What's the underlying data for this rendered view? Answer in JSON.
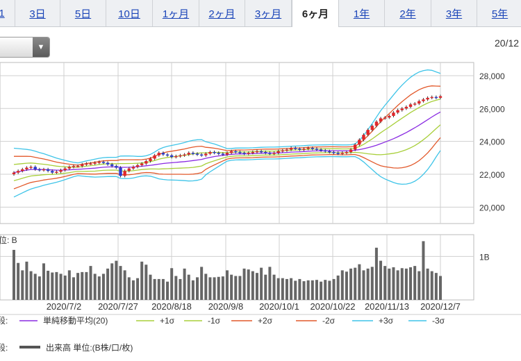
{
  "tabs": [
    {
      "label": "1",
      "active": false
    },
    {
      "label": "3日",
      "active": false
    },
    {
      "label": "5日",
      "active": false
    },
    {
      "label": "10日",
      "active": false
    },
    {
      "label": "1ヶ月",
      "active": false
    },
    {
      "label": "2ヶ月",
      "active": false
    },
    {
      "label": "3ヶ月",
      "active": false
    },
    {
      "label": "6ヶ月",
      "active": true
    },
    {
      "label": "1年",
      "active": false
    },
    {
      "label": "2年",
      "active": false
    },
    {
      "label": "3年",
      "active": false
    },
    {
      "label": "5年",
      "active": false
    }
  ],
  "dropdown": {
    "value": "",
    "icon": "triangle-down-icon"
  },
  "date_label": "20/12",
  "legend": {
    "row1_prefix": "段:",
    "row2_prefix": "段:",
    "volume_label": "出来高 単位:(B株/口/枚)"
  },
  "colors": {
    "up": "#e0262a",
    "down": "#2a3bd0",
    "sma": "#8a2be2",
    "sigma1": "#a8cf3a",
    "sigma2": "#e2582a",
    "sigma3": "#3ec4e8",
    "volume": "#666666",
    "grid": "#cfcfcf"
  },
  "chart_data": [
    {
      "type": "candlestick",
      "title": "",
      "ylim": [
        19000,
        28800
      ],
      "yticks": [
        20000,
        22000,
        24000,
        26000,
        28000
      ],
      "ytick_labels": [
        "20,000",
        "22,000",
        "24,000",
        "26,000",
        "28,000"
      ],
      "grid": true,
      "x_labels": [
        "2020/7/2",
        "2020/7/27",
        "2020/8/18",
        "2020/9/8",
        "2020/10/1",
        "2020/10/22",
        "2020/11/13",
        "2020/12/7"
      ],
      "close": [
        22100,
        22200,
        22300,
        22400,
        22450,
        22300,
        22250,
        22300,
        22200,
        22100,
        22150,
        22250,
        22350,
        22450,
        22500,
        22500,
        22600,
        22650,
        22650,
        22700,
        22750,
        22700,
        22600,
        22500,
        22400,
        21900,
        22200,
        22350,
        22450,
        22550,
        22650,
        22800,
        22950,
        23150,
        23300,
        23200,
        23150,
        23050,
        23100,
        23150,
        23200,
        23300,
        23250,
        23200,
        23150,
        23250,
        23350,
        23300,
        23250,
        23200,
        23300,
        23400,
        23350,
        23300,
        23250,
        23300,
        23350,
        23400,
        23350,
        23300,
        23250,
        23300,
        23400,
        23450,
        23500,
        23600,
        23550,
        23500,
        23550,
        23600,
        23550,
        23500,
        23450,
        23400,
        23350,
        23300,
        23250,
        23300,
        23350,
        23500,
        23800,
        24100,
        24400,
        24700,
        24950,
        25200,
        25400,
        25450,
        25550,
        25750,
        25900,
        26000,
        26100,
        26250,
        26300,
        26450,
        26550,
        26650,
        26700,
        26650,
        26750
      ],
      "series_sma20": [
        22400,
        22420,
        22430,
        22450,
        22460,
        22470,
        22480,
        22490,
        22500,
        22520,
        22550,
        22580,
        22620,
        22680,
        22740,
        22800,
        22860,
        22900,
        22950,
        23000,
        23050,
        23080,
        23100,
        23120,
        23140,
        23160,
        23180,
        23200,
        23220,
        23240,
        23260,
        23270,
        23280,
        23290,
        23300,
        23310,
        23320,
        23330,
        23340,
        23350,
        23360,
        23370,
        23380,
        23390,
        23400,
        23410,
        23420,
        23430,
        23440,
        23460,
        23480,
        23500,
        23550,
        23620,
        23720,
        23850,
        24000,
        24200,
        24450,
        24700,
        25000,
        25300,
        25550,
        25800,
        26000
      ],
      "series_sma20_x_start_index": 36,
      "bands_sigma": [
        1,
        2,
        3
      ]
    },
    {
      "type": "bar",
      "title": "",
      "ylim": [
        0,
        1.5
      ],
      "ytick_labels": [
        "1B"
      ],
      "yticks": [
        1
      ],
      "values": [
        1.15,
        0.85,
        0.68,
        0.88,
        0.66,
        0.6,
        0.54,
        0.84,
        0.67,
        0.63,
        0.64,
        0.6,
        0.56,
        0.68,
        0.52,
        0.62,
        0.64,
        0.64,
        0.78,
        0.6,
        0.54,
        0.6,
        0.72,
        0.84,
        0.9,
        0.78,
        0.68,
        0.52,
        0.45,
        0.5,
        0.88,
        0.81,
        0.58,
        0.48,
        0.48,
        0.48,
        0.42,
        0.73,
        0.55,
        0.48,
        0.72,
        0.58,
        0.45,
        0.52,
        0.76,
        0.6,
        0.52,
        0.52,
        0.53,
        0.54,
        0.68,
        0.58,
        0.55,
        0.55,
        0.72,
        0.7,
        0.66,
        0.62,
        0.74,
        0.58,
        0.76,
        0.58,
        0.5,
        0.5,
        0.48,
        0.5,
        0.44,
        0.48,
        0.43,
        0.45,
        0.45,
        0.46,
        0.42,
        0.46,
        0.44,
        0.48,
        0.56,
        0.68,
        0.65,
        0.72,
        0.74,
        0.82,
        0.68,
        0.72,
        0.76,
        1.2,
        0.9,
        0.78,
        0.72,
        0.75,
        0.68,
        0.73,
        0.72,
        0.75,
        0.78,
        0.66,
        1.35,
        0.72,
        0.66,
        0.62,
        0.55
      ],
      "legend": "出来高 単位:(B株/口/枚)"
    }
  ],
  "legend_items": [
    {
      "label": "単純移動平均(20)",
      "color": "#8a2be2"
    },
    {
      "label": "+1σ",
      "color": "#a8cf3a"
    },
    {
      "label": "-1σ",
      "color": "#a8cf3a"
    },
    {
      "label": "+2σ",
      "color": "#e2582a"
    },
    {
      "label": "-2σ",
      "color": "#e2582a"
    },
    {
      "label": "+3σ",
      "color": "#3ec4e8"
    },
    {
      "label": "-3σ",
      "color": "#3ec4e8"
    }
  ],
  "volume_axis_label": "位: B"
}
